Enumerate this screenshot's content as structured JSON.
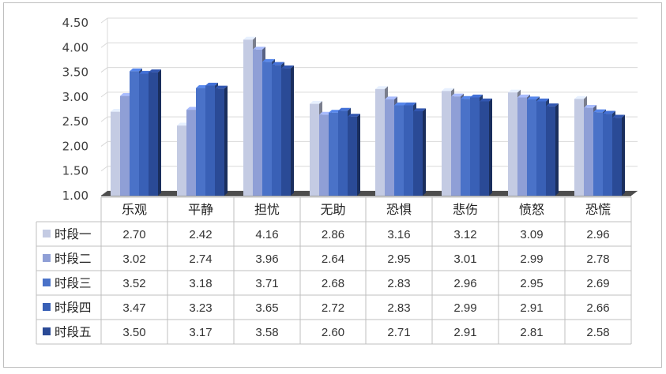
{
  "chart_data": {
    "type": "bar",
    "categories": [
      "乐观",
      "平静",
      "担忧",
      "无助",
      "恐惧",
      "悲伤",
      "愤怒",
      "恐慌"
    ],
    "series": [
      {
        "name": "时段一",
        "color": "#c4cbe3",
        "values": [
          2.7,
          2.42,
          4.16,
          2.86,
          3.16,
          3.12,
          3.09,
          2.96
        ]
      },
      {
        "name": "时段二",
        "color": "#8f9fd6",
        "values": [
          3.02,
          2.74,
          3.96,
          2.64,
          2.95,
          3.01,
          2.99,
          2.78
        ]
      },
      {
        "name": "时段三",
        "color": "#4a72c8",
        "values": [
          3.52,
          3.18,
          3.71,
          2.68,
          2.83,
          2.96,
          2.95,
          2.69
        ]
      },
      {
        "name": "时段四",
        "color": "#3960b6",
        "values": [
          3.47,
          3.23,
          3.65,
          2.72,
          2.83,
          2.99,
          2.91,
          2.66
        ]
      },
      {
        "name": "时段五",
        "color": "#2a4a96",
        "values": [
          3.5,
          3.17,
          3.58,
          2.6,
          2.71,
          2.91,
          2.81,
          2.58
        ]
      }
    ],
    "y_ticks": [
      "1.00",
      "1.50",
      "2.00",
      "2.50",
      "3.00",
      "3.50",
      "4.00",
      "4.50"
    ],
    "ylim": [
      1.0,
      4.5
    ],
    "grid": true,
    "legend": "data table below plot",
    "data_table": [
      [
        "2.70",
        "2.42",
        "4.16",
        "2.86",
        "3.16",
        "3.12",
        "3.09",
        "2.96"
      ],
      [
        "3.02",
        "2.74",
        "3.96",
        "2.64",
        "2.95",
        "3.01",
        "2.99",
        "2.78"
      ],
      [
        "3.52",
        "3.18",
        "3.71",
        "2.68",
        "2.83",
        "2.96",
        "2.95",
        "2.69"
      ],
      [
        "3.47",
        "3.23",
        "3.65",
        "2.72",
        "2.83",
        "2.99",
        "2.91",
        "2.66"
      ],
      [
        "3.50",
        "3.17",
        "3.58",
        "2.60",
        "2.71",
        "2.91",
        "2.81",
        "2.58"
      ]
    ]
  }
}
